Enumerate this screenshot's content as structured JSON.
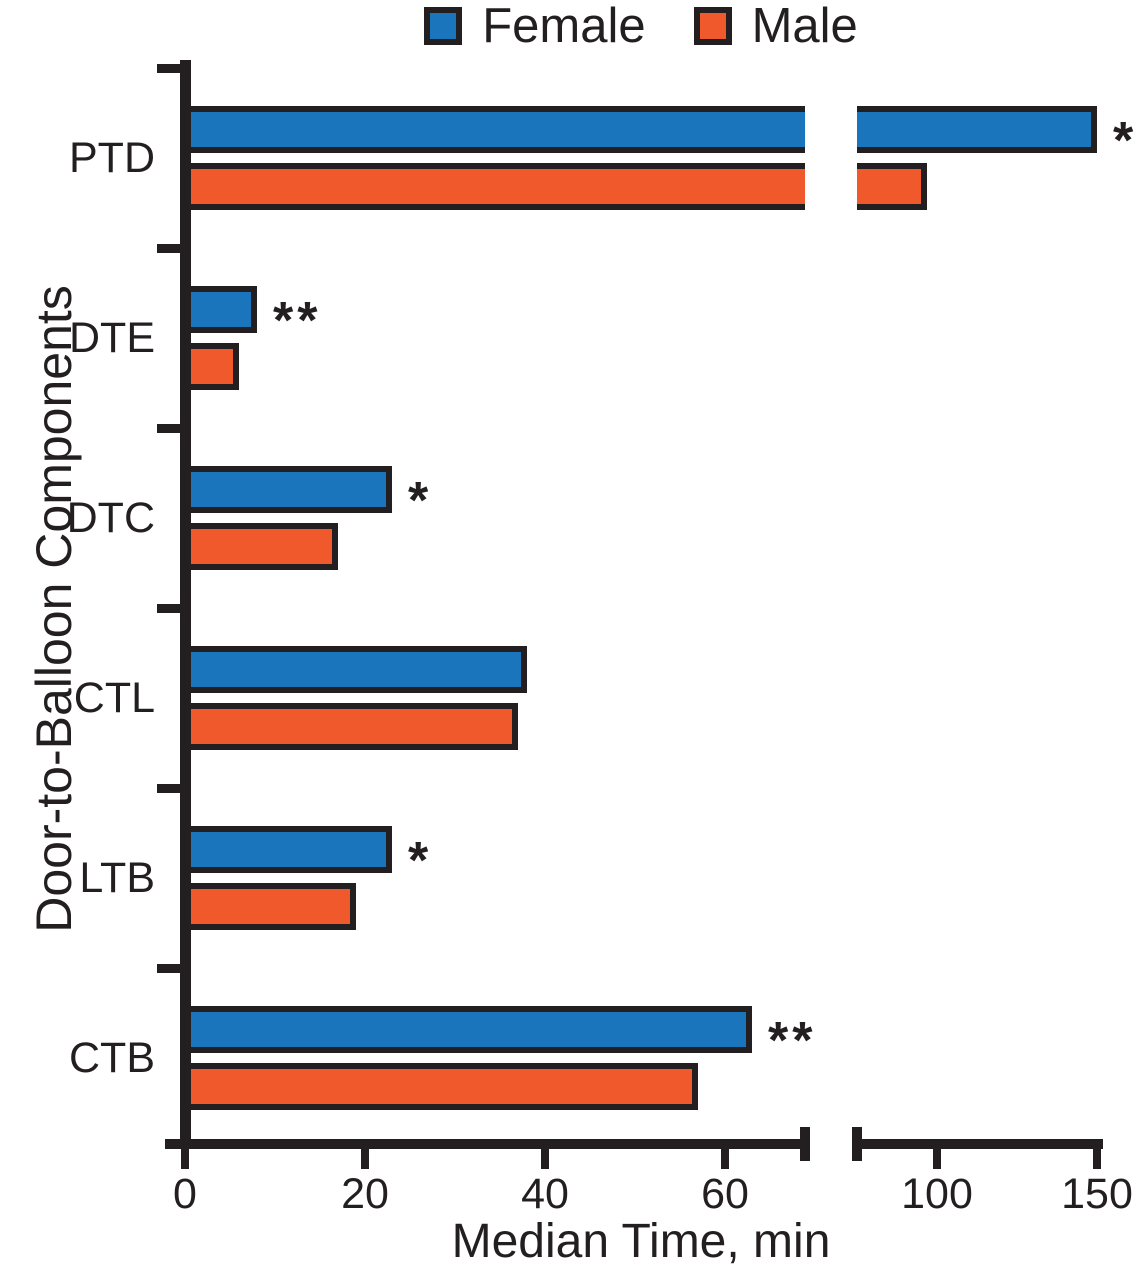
{
  "chart_data": {
    "type": "bar",
    "orientation": "horizontal",
    "title": "",
    "xlabel": "Median Time, min",
    "ylabel": "Door-to-Balloon Components",
    "categories": [
      "PTD",
      "DTE",
      "DTC",
      "CTL",
      "LTB",
      "CTB"
    ],
    "series": [
      {
        "name": "Female",
        "color": "#1B75BC",
        "values": [
          150,
          8,
          23,
          38,
          23,
          63
        ]
      },
      {
        "name": "Male",
        "color": "#F0592B",
        "values": [
          97,
          6,
          17,
          37,
          19,
          57
        ]
      }
    ],
    "significance_markers": [
      "*",
      "**",
      "*",
      "",
      "*",
      "**"
    ],
    "significance_on_series": "Female",
    "x_axis": {
      "range": [
        0,
        150
      ],
      "ticks_before_break": [
        0,
        20,
        40,
        60
      ],
      "ticks_after_break": [
        100,
        150
      ],
      "axis_break_between": [
        70,
        75
      ],
      "grid": false
    },
    "legend_position": "top",
    "outline_color": "#231F20",
    "background_color": "#FFFFFF"
  }
}
